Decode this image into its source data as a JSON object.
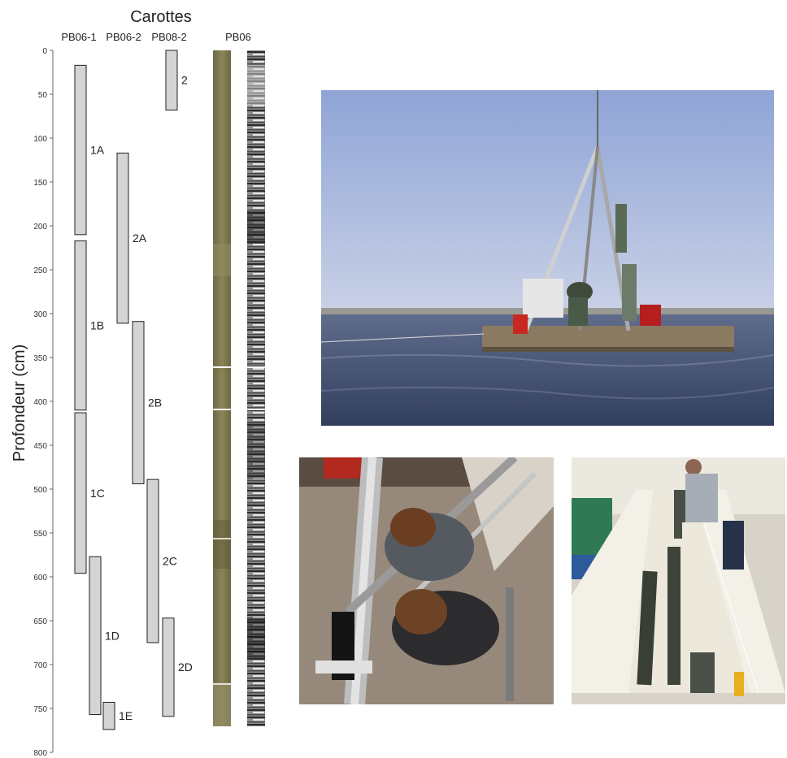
{
  "figure": {
    "title": "Carottes",
    "ylabel": "Profondeur (cm)",
    "scan_label": "PB06"
  },
  "chart_data": {
    "type": "core-log",
    "title": "Carottes",
    "ylabel": "Profondeur (cm)",
    "ylim": [
      0,
      800
    ],
    "yticks": [
      0,
      50,
      100,
      150,
      200,
      250,
      300,
      350,
      400,
      450,
      500,
      550,
      600,
      650,
      700,
      750,
      800
    ],
    "columns": [
      "PB06-1",
      "PB06-2",
      "PB08-2"
    ],
    "sections": [
      {
        "label": "1A",
        "column": "PB06-1",
        "top": 17,
        "bottom": 210
      },
      {
        "label": "1B",
        "column": "PB06-1",
        "top": 217,
        "bottom": 410
      },
      {
        "label": "1C",
        "column": "PB06-1",
        "top": 413,
        "bottom": 596
      },
      {
        "label": "1D",
        "column": "PB06-1",
        "top": 577,
        "bottom": 757
      },
      {
        "label": "1E",
        "column": "PB06-1",
        "top": 743,
        "bottom": 774
      },
      {
        "label": "2A",
        "column": "PB06-2",
        "top": 117,
        "bottom": 311
      },
      {
        "label": "2B",
        "column": "PB06-2",
        "top": 309,
        "bottom": 494
      },
      {
        "label": "2C",
        "column": "PB06-2",
        "top": 489,
        "bottom": 675
      },
      {
        "label": "2D",
        "column": "PB06-2",
        "top": 647,
        "bottom": 759
      },
      {
        "label": "2",
        "column": "PB08-2",
        "top": 0,
        "bottom": 68
      }
    ]
  },
  "photos": [
    {
      "name": "pontoon-drilling-photo",
      "icon": "photo-drilling-pontoon-on-water"
    },
    {
      "name": "drilling-overhead-photo",
      "icon": "photo-operators-from-above"
    },
    {
      "name": "lab-cores-photo",
      "icon": "photo-cores-on-lab-tables"
    }
  ],
  "colors": {
    "section_fill": "#d4d4d4",
    "core_photo": "#7d7750",
    "water": "#49597d",
    "sky": "#b9c6e3"
  }
}
